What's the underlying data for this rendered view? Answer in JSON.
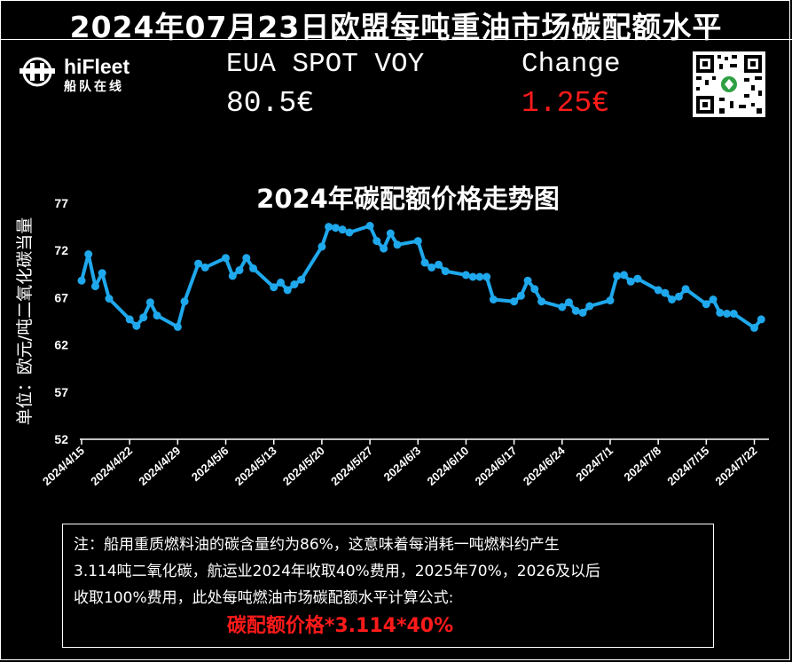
{
  "header": {
    "title": "2024年07月23日欧盟每吨重油市场碳配额水平",
    "logo_name": "hiFleet",
    "logo_sub": "船队在线",
    "eua_label": "EUA SPOT VOY",
    "eua_value": "80.5€",
    "change_label": "Change",
    "change_value": "1.25€"
  },
  "colors": {
    "line": "#1fa8ec",
    "highlight": "#ff1a1a",
    "background": "#000000"
  },
  "chart_data": {
    "type": "line",
    "title": "2024年碳配额价格走势图",
    "ylabel": "单位：欧元/吨二氧化碳当量",
    "xlabel": "",
    "ylim": [
      52,
      77
    ],
    "yticks": [
      52,
      57,
      62,
      67,
      72,
      77
    ],
    "xlim": [
      "2024-04-15",
      "2024-07-24"
    ],
    "xticks": [
      "2024/4/15",
      "2024/4/22",
      "2024/4/29",
      "2024/5/6",
      "2024/5/13",
      "2024/5/20",
      "2024/5/27",
      "2024/6/3",
      "2024/6/10",
      "2024/6/17",
      "2024/6/24",
      "2024/7/1",
      "2024/7/8",
      "2024/7/15",
      "2024/7/22"
    ],
    "xtick_dates": [
      "2024-04-15",
      "2024-04-22",
      "2024-04-29",
      "2024-05-06",
      "2024-05-13",
      "2024-05-20",
      "2024-05-27",
      "2024-06-03",
      "2024-06-10",
      "2024-06-17",
      "2024-06-24",
      "2024-07-01",
      "2024-07-08",
      "2024-07-15",
      "2024-07-22"
    ],
    "grid": false,
    "series": [
      {
        "points": [
          [
            "2024-04-15",
            68.8
          ],
          [
            "2024-04-16",
            71.6
          ],
          [
            "2024-04-17",
            68.2
          ],
          [
            "2024-04-18",
            69.6
          ],
          [
            "2024-04-19",
            66.9
          ],
          [
            "2024-04-22",
            64.7
          ],
          [
            "2024-04-23",
            64.0
          ],
          [
            "2024-04-24",
            64.9
          ],
          [
            "2024-04-25",
            66.5
          ],
          [
            "2024-04-26",
            65.1
          ],
          [
            "2024-04-29",
            63.9
          ],
          [
            "2024-04-30",
            66.6
          ],
          [
            "2024-05-02",
            70.6
          ],
          [
            "2024-05-03",
            70.2
          ],
          [
            "2024-05-06",
            71.2
          ],
          [
            "2024-05-07",
            69.3
          ],
          [
            "2024-05-08",
            69.9
          ],
          [
            "2024-05-09",
            71.2
          ],
          [
            "2024-05-10",
            70.1
          ],
          [
            "2024-05-13",
            68.1
          ],
          [
            "2024-05-14",
            68.6
          ],
          [
            "2024-05-15",
            67.8
          ],
          [
            "2024-05-16",
            68.4
          ],
          [
            "2024-05-17",
            68.9
          ],
          [
            "2024-05-20",
            72.4
          ],
          [
            "2024-05-21",
            74.5
          ],
          [
            "2024-05-22",
            74.4
          ],
          [
            "2024-05-23",
            74.2
          ],
          [
            "2024-05-24",
            73.9
          ],
          [
            "2024-05-27",
            74.6
          ],
          [
            "2024-05-28",
            73.0
          ],
          [
            "2024-05-29",
            72.2
          ],
          [
            "2024-05-30",
            73.8
          ],
          [
            "2024-05-31",
            72.6
          ],
          [
            "2024-06-03",
            73.0
          ],
          [
            "2024-06-04",
            70.7
          ],
          [
            "2024-06-05",
            70.2
          ],
          [
            "2024-06-06",
            70.5
          ],
          [
            "2024-06-07",
            69.8
          ],
          [
            "2024-06-10",
            69.4
          ],
          [
            "2024-06-11",
            69.2
          ],
          [
            "2024-06-12",
            69.2
          ],
          [
            "2024-06-13",
            69.2
          ],
          [
            "2024-06-14",
            66.8
          ],
          [
            "2024-06-17",
            66.6
          ],
          [
            "2024-06-18",
            67.2
          ],
          [
            "2024-06-19",
            68.8
          ],
          [
            "2024-06-20",
            67.9
          ],
          [
            "2024-06-21",
            66.6
          ],
          [
            "2024-06-24",
            66.0
          ],
          [
            "2024-06-25",
            66.5
          ],
          [
            "2024-06-26",
            65.6
          ],
          [
            "2024-06-27",
            65.4
          ],
          [
            "2024-06-28",
            66.1
          ],
          [
            "2024-07-01",
            66.7
          ],
          [
            "2024-07-02",
            69.3
          ],
          [
            "2024-07-03",
            69.4
          ],
          [
            "2024-07-04",
            68.7
          ],
          [
            "2024-07-05",
            69.0
          ],
          [
            "2024-07-08",
            67.8
          ],
          [
            "2024-07-09",
            67.5
          ],
          [
            "2024-07-10",
            66.8
          ],
          [
            "2024-07-11",
            67.1
          ],
          [
            "2024-07-12",
            67.9
          ],
          [
            "2024-07-15",
            66.3
          ],
          [
            "2024-07-16",
            66.8
          ],
          [
            "2024-07-17",
            65.4
          ],
          [
            "2024-07-18",
            65.3
          ],
          [
            "2024-07-19",
            65.3
          ],
          [
            "2024-07-22",
            63.8
          ],
          [
            "2024-07-23",
            64.7
          ]
        ]
      }
    ]
  },
  "note": {
    "line1": "注：船用重质燃料油的碳含量约为86%，这意味着每消耗一吨燃料约产生",
    "line2": "3.114吨二氧化碳，航运业2024年收取40%费用，2025年70%，2026及以后",
    "line3": "收取100%费用，此处每吨燃油市场碳配额水平计算公式:",
    "formula": "碳配额价格*3.114*40%"
  }
}
